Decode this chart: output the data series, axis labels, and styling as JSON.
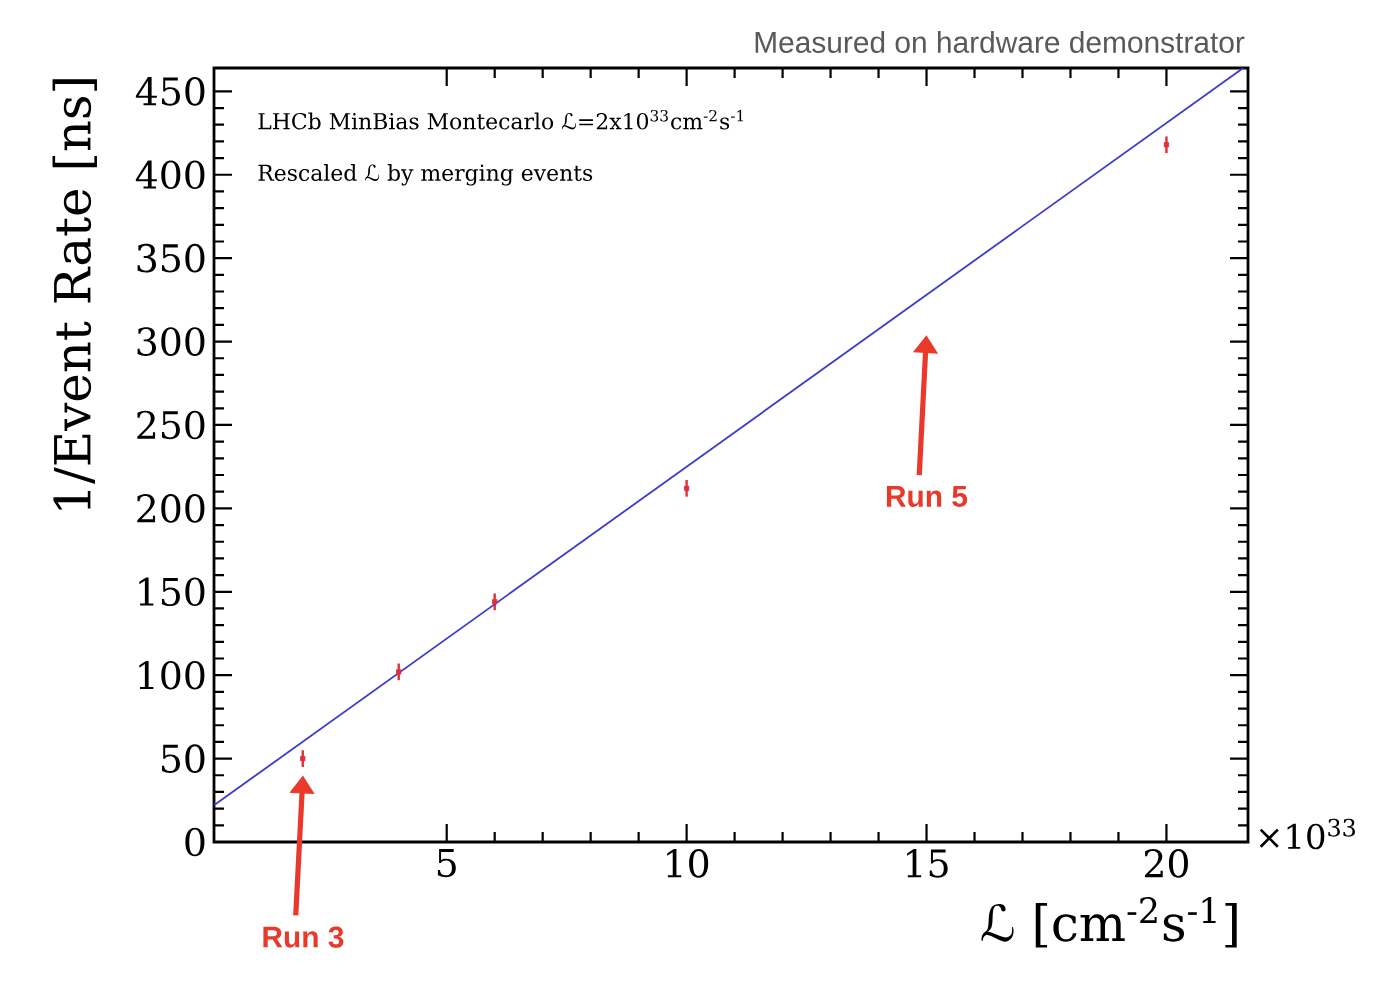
{
  "chart_data": {
    "type": "scatter",
    "xlabel": "ℒ [cm$^{-2}$s$^{-1}$]",
    "ylabel": "1/Event Rate [ns]",
    "xlim": [
      0.15,
      21.7
    ],
    "ylim": [
      0,
      464
    ],
    "xticks": [
      5,
      10,
      15,
      20
    ],
    "yticks": [
      0,
      50,
      100,
      150,
      200,
      250,
      300,
      350,
      400,
      450
    ],
    "series": [
      {
        "color": "#e0303a",
        "marker": "square",
        "x": [
          2,
          4,
          6,
          10,
          20
        ],
        "values": [
          50,
          102,
          144,
          212,
          418
        ],
        "errors": [
          5,
          5,
          5,
          5,
          5
        ]
      },
      {
        "type": "line",
        "marker": "none",
        "color": "#3b3bd0",
        "x": [
          0.15,
          21.6
        ],
        "values": [
          22,
          464
        ]
      }
    ],
    "annotations": [
      "Measured on hardware demonstrator",
      "LHCb MinBias Montecarlo ℒ=2x10$^{33}$cm$^{-2}$s$^{-1}$",
      "Rescaled ℒ by merging events",
      "×10$^{33}$",
      "Run 3",
      "Run 5"
    ]
  }
}
